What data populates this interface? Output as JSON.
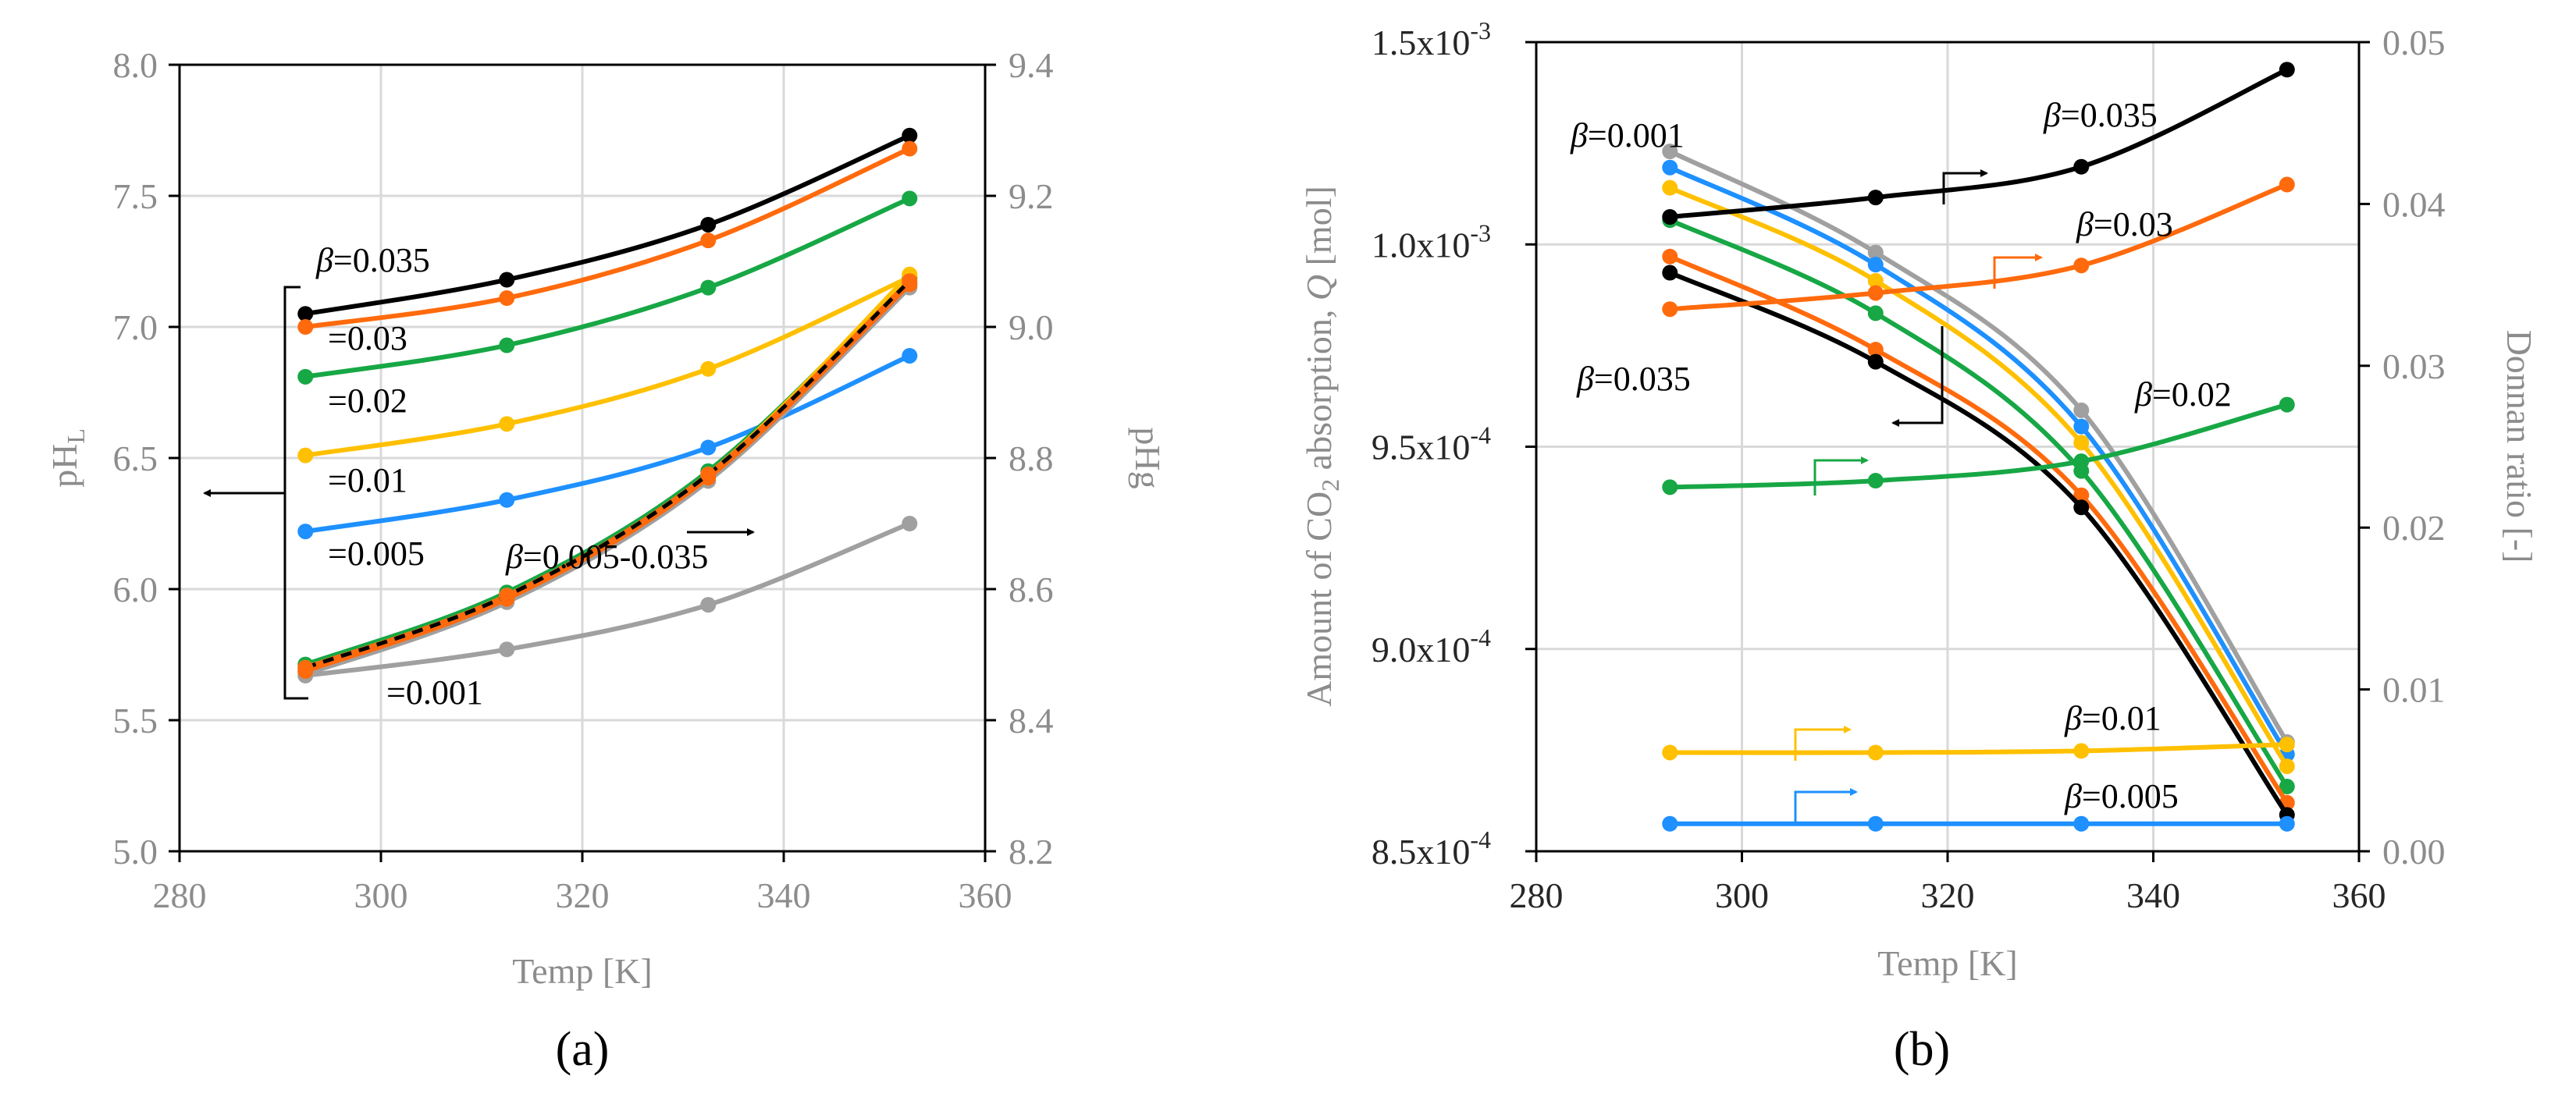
{
  "chart_data": [
    {
      "panel": "(a)",
      "type": "line",
      "xlabel": "Temp [K]",
      "ylabel": "pH",
      "ylabel_sub": "L",
      "y2label": "pHg",
      "xlim": [
        280,
        360
      ],
      "xticks": [
        280,
        300,
        320,
        340,
        360
      ],
      "ylim": [
        5.0,
        8.0
      ],
      "yticks": [
        "5.0",
        "5.5",
        "6.0",
        "6.5",
        "7.0",
        "7.5",
        "8.0"
      ],
      "y2lim": [
        8.2,
        9.4
      ],
      "y2ticks": [
        "8.2",
        "8.4",
        "8.6",
        "8.8",
        "9.0",
        "9.2",
        "9.4"
      ],
      "x": [
        292.5,
        312.5,
        332.5,
        352.5
      ],
      "grid": true,
      "series": [
        {
          "name": "β=0.035",
          "axis": "left",
          "color": "#000000",
          "values": [
            7.05,
            7.18,
            7.39,
            7.73
          ]
        },
        {
          "name": "=0.03",
          "axis": "left",
          "color": "#ff6a0d",
          "values": [
            7.0,
            7.11,
            7.33,
            7.68
          ]
        },
        {
          "name": "=0.02",
          "axis": "left",
          "color": "#17a745",
          "values": [
            6.81,
            6.93,
            7.15,
            7.49
          ]
        },
        {
          "name": "=0.01",
          "axis": "left",
          "color": "#ffc000",
          "values": [
            6.51,
            6.63,
            6.84,
            7.19
          ]
        },
        {
          "name": "=0.005",
          "axis": "left",
          "color": "#1e90ff",
          "values": [
            6.22,
            6.34,
            6.54,
            6.89
          ]
        },
        {
          "name": "=0.001",
          "axis": "left",
          "color": "#a0a0a0",
          "values": [
            5.67,
            5.77,
            5.94,
            6.25
          ]
        },
        {
          "name": "pHg 0.02",
          "axis": "right",
          "color": "#17a745",
          "values": [
            8.485,
            8.595,
            8.78,
            9.075
          ]
        },
        {
          "name": "pHg 0.005",
          "axis": "right",
          "color": "#1e90ff",
          "values": [
            8.475,
            8.585,
            8.77,
            9.065
          ]
        },
        {
          "name": "pHg 0.01",
          "axis": "right",
          "color": "#ffc000",
          "values": [
            8.48,
            8.59,
            8.775,
            9.08
          ]
        },
        {
          "name": "pHg 0.001",
          "axis": "right",
          "color": "#a0a0a0",
          "values": [
            8.47,
            8.58,
            8.765,
            9.06
          ]
        },
        {
          "name": "pHg 0.03",
          "axis": "right",
          "color": "#ff6a0d",
          "values": [
            8.475,
            8.585,
            8.77,
            9.065
          ]
        },
        {
          "name": "pHg 0.035",
          "axis": "right",
          "color": "#000000",
          "values": [
            8.48,
            8.59,
            8.775,
            9.07
          ],
          "dashed": true
        }
      ],
      "annotations": [
        "β=0.035",
        "=0.03",
        "=0.02",
        "=0.01",
        "=0.005",
        "=0.001",
        "β=0.005-0.035"
      ]
    },
    {
      "panel": "(b)",
      "type": "line",
      "xlabel": "Temp [K]",
      "ylabel": "Amount of CO",
      "ylabel_sub": "2",
      "ylabel_tail": " absorption, ",
      "ylabel_var": "Q",
      "ylabel_unit": " [mol]",
      "y2label": "Donnan ratio [-]",
      "xlim": [
        280,
        360
      ],
      "xticks": [
        280,
        300,
        320,
        340,
        360
      ],
      "ylim": [
        0.00085,
        0.00105
      ],
      "yticks": [
        "8.5x10",
        "9.0x10",
        "9.5x10",
        "1.0x10",
        "1.5x10"
      ],
      "ytick_exps": [
        "-4",
        "-4",
        "-4",
        "-3",
        "-3"
      ],
      "y2lim": [
        0,
        0.05
      ],
      "y2ticks": [
        "0.00",
        "0.01",
        "0.02",
        "0.03",
        "0.04",
        "0.05"
      ],
      "x": [
        293,
        313,
        333,
        353
      ],
      "grid": true,
      "series": [
        {
          "name": "Q β=0.001",
          "axis": "left",
          "color": "#a0a0a0",
          "values": [
            0.001023,
            0.000998,
            0.000959,
            0.000877
          ]
        },
        {
          "name": "Q β=0.005",
          "axis": "left",
          "color": "#1e90ff",
          "values": [
            0.001019,
            0.000995,
            0.000955,
            0.000874
          ]
        },
        {
          "name": "Q β=0.01",
          "axis": "left",
          "color": "#ffc000",
          "values": [
            0.001014,
            0.000991,
            0.000951,
            0.000871
          ]
        },
        {
          "name": "Q β=0.02",
          "axis": "left",
          "color": "#17a745",
          "values": [
            0.001006,
            0.000983,
            0.000944,
            0.000866
          ]
        },
        {
          "name": "Q β=0.03",
          "axis": "left",
          "color": "#ff6a0d",
          "values": [
            0.000997,
            0.000974,
            0.000938,
            0.000862
          ]
        },
        {
          "name": "Q β=0.035",
          "axis": "left",
          "color": "#000000",
          "values": [
            0.000993,
            0.000971,
            0.000935,
            0.000859
          ]
        },
        {
          "name": "Donnan β=0.035",
          "axis": "right",
          "color": "#000000",
          "values": [
            0.0392,
            0.0404,
            0.0423,
            0.0483
          ]
        },
        {
          "name": "Donnan β=0.03",
          "axis": "right",
          "color": "#ff6a0d",
          "values": [
            0.0335,
            0.0345,
            0.0362,
            0.0412
          ]
        },
        {
          "name": "Donnan β=0.02",
          "axis": "right",
          "color": "#17a745",
          "values": [
            0.0225,
            0.0229,
            0.0241,
            0.0276
          ]
        },
        {
          "name": "Donnan β=0.01",
          "axis": "right",
          "color": "#ffc000",
          "values": [
            0.0061,
            0.0061,
            0.0062,
            0.0066
          ]
        },
        {
          "name": "Donnan β=0.005",
          "axis": "right",
          "color": "#1e90ff",
          "values": [
            0.0017,
            0.0017,
            0.0017,
            0.0017
          ]
        }
      ],
      "annotations": [
        "β=0.001",
        "β=0.035",
        "β=0.035",
        "β=0.03",
        "β=0.02",
        "β=0.01",
        "β=0.005"
      ]
    }
  ]
}
